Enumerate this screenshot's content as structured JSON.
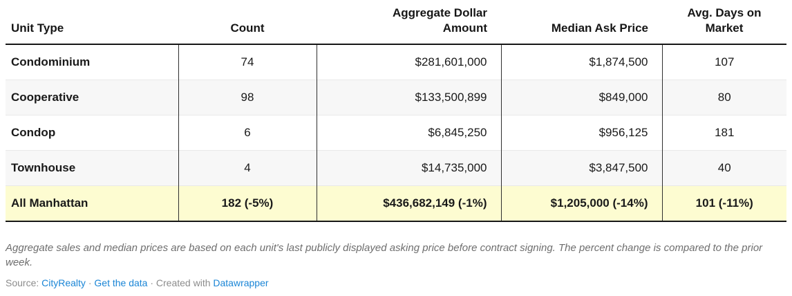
{
  "chart_data": {
    "type": "table",
    "columns": [
      "Unit Type",
      "Count",
      "Aggregate Dollar Amount",
      "Median Ask Price",
      "Avg. Days on Market"
    ],
    "rows": [
      {
        "unit_type": "Condominium",
        "count": 74,
        "aggregate_dollar_amount": 281601000,
        "median_ask_price": 1874500,
        "avg_days_on_market": 107
      },
      {
        "unit_type": "Cooperative",
        "count": 98,
        "aggregate_dollar_amount": 133500899,
        "median_ask_price": 849000,
        "avg_days_on_market": 80
      },
      {
        "unit_type": "Condop",
        "count": 6,
        "aggregate_dollar_amount": 6845250,
        "median_ask_price": 956125,
        "avg_days_on_market": 181
      },
      {
        "unit_type": "Townhouse",
        "count": 4,
        "aggregate_dollar_amount": 14735000,
        "median_ask_price": 3847500,
        "avg_days_on_market": 40
      }
    ],
    "summary_row": {
      "unit_type": "All Manhattan",
      "count": 182,
      "count_change_pct": -5,
      "aggregate_dollar_amount": 436682149,
      "aggregate_change_pct": -1,
      "median_ask_price": 1205000,
      "median_change_pct": -14,
      "avg_days_on_market": 101,
      "avg_days_change_pct": -11
    },
    "layout_hints": {
      "highlighted_row": "All Manhattan",
      "highlight_color": "#fdfcd1",
      "alternating_rows": true
    }
  },
  "table": {
    "headers": [
      "Unit Type",
      "Count",
      "Aggregate Dollar Amount",
      "Median Ask Price",
      "Avg. Days on Market"
    ],
    "rows": [
      [
        "Condominium",
        "74",
        "$281,601,000",
        "$1,874,500",
        "107"
      ],
      [
        "Cooperative",
        "98",
        "$133,500,899",
        "$849,000",
        "80"
      ],
      [
        "Condop",
        "6",
        "$6,845,250",
        "$956,125",
        "181"
      ],
      [
        "Townhouse",
        "4",
        "$14,735,000",
        "$3,847,500",
        "40"
      ],
      [
        "All Manhattan",
        "182 (-5%)",
        "$436,682,149 (-1%)",
        "$1,205,000 (-14%)",
        "101 (-11%)"
      ]
    ]
  },
  "footer": {
    "note": "Aggregate sales and median prices are based on each unit's last publicly displayed asking price before contract signing. The percent change is compared to the prior week.",
    "source_label": "Source:",
    "source_link": "CityRealty",
    "dot1": "·",
    "get_data_link": "Get the data",
    "dot2": "·",
    "created_with_label": "Created with",
    "datawrapper_link": "Datawrapper"
  },
  "colors": {
    "header_border": "#161616",
    "column_divider": "#2e2e2e",
    "row_divider": "#e9e9e9",
    "alt_row_bg": "#f7f7f7",
    "highlight_row_bg": "#fdfcd1",
    "link_blue": "#1a85d6",
    "note_gray": "#6e6e6e",
    "source_gray": "#8c8c8c"
  }
}
